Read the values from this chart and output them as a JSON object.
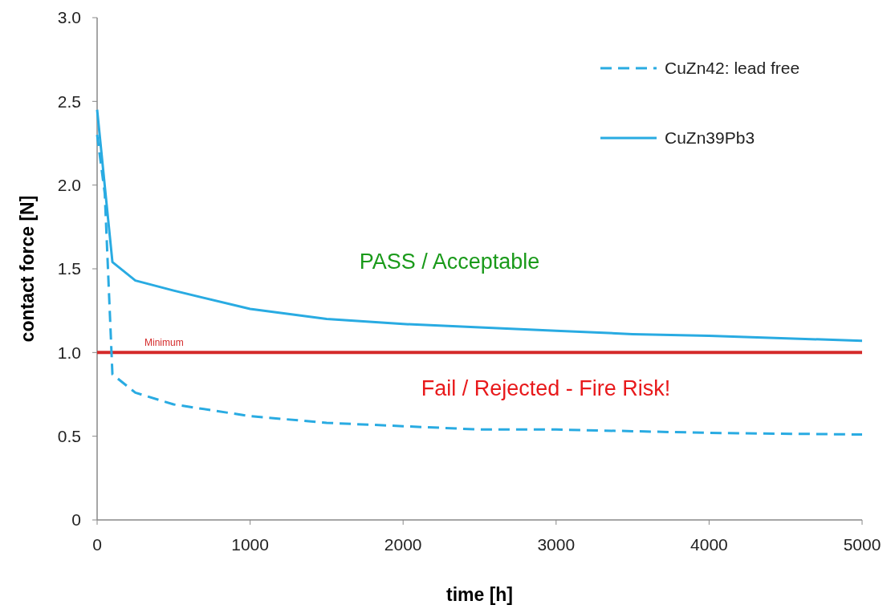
{
  "chart_data": {
    "type": "line",
    "xlabel": "time [h]",
    "ylabel": "contact force [N]",
    "xlim": [
      0,
      5000
    ],
    "xticks": [
      0,
      1000,
      2000,
      3000,
      4000,
      5000
    ],
    "ylim": [
      0,
      3
    ],
    "yticks": [
      0,
      0.5,
      {
        "value": 1,
        "label": "1.0"
      },
      1.5,
      {
        "value": 2,
        "label": "2.0"
      },
      2.5,
      {
        "value": 3,
        "label": "3.0"
      }
    ],
    "grid": false,
    "legend": "top right",
    "series": [
      {
        "name": "CuZn42: lead free",
        "color": "#29abe2",
        "line_style": "dashed",
        "x": [
          0,
          50,
          100,
          250,
          500,
          1000,
          1500,
          2000,
          2500,
          3000,
          3500,
          4000,
          5000
        ],
        "values": [
          2.3,
          1.95,
          0.87,
          0.76,
          0.69,
          0.62,
          0.58,
          0.56,
          0.54,
          0.54,
          0.53,
          0.52,
          0.51
        ]
      },
      {
        "name": "CuZn39Pb3",
        "color": "#29abe2",
        "line_style": "solid",
        "x": [
          0,
          100,
          250,
          500,
          1000,
          1500,
          2000,
          2500,
          3000,
          3500,
          4000,
          5000
        ],
        "values": [
          2.45,
          1.54,
          1.43,
          1.37,
          1.26,
          1.2,
          1.17,
          1.15,
          1.13,
          1.11,
          1.1,
          1.07
        ]
      }
    ],
    "ref_lines": [
      {
        "axis": "y",
        "value": 1,
        "label": "Minimum",
        "color": "#d42a2a"
      }
    ],
    "annotations": [
      "PASS / Acceptable",
      "Fail / Rejected - Fire Risk!"
    ]
  }
}
